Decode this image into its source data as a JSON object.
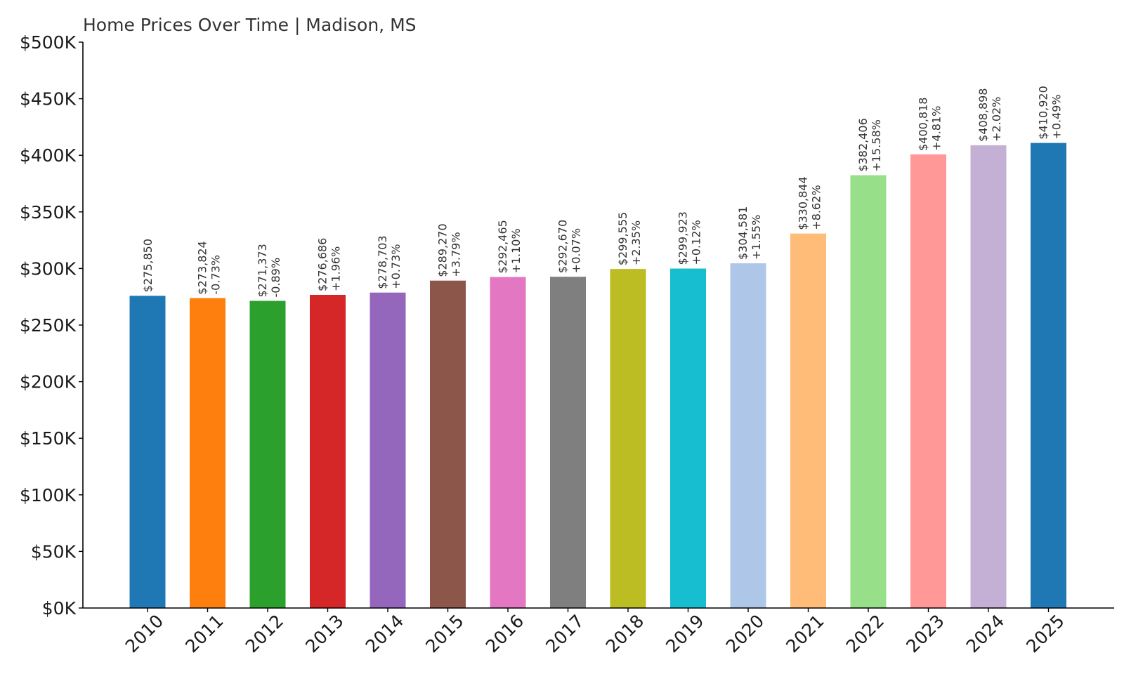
{
  "chart_data": {
    "type": "bar",
    "title": "Home Prices Over Time | Madison, MS",
    "xlabel": "",
    "ylabel": "",
    "ylim": [
      0,
      500000
    ],
    "y_ticks": [
      "$0K",
      "$50K",
      "$100K",
      "$150K",
      "$200K",
      "$250K",
      "$300K",
      "$350K",
      "$400K",
      "$450K",
      "$500K"
    ],
    "grid": false,
    "categories": [
      "2010",
      "2011",
      "2012",
      "2013",
      "2014",
      "2015",
      "2016",
      "2017",
      "2018",
      "2019",
      "2020",
      "2021",
      "2022",
      "2023",
      "2024",
      "2025"
    ],
    "values": [
      275850,
      273824,
      271373,
      276686,
      278703,
      289270,
      292465,
      292670,
      299555,
      299923,
      304581,
      330844,
      382406,
      400818,
      408898,
      410920
    ],
    "value_labels": [
      "$275,850",
      "$273,824",
      "$271,373",
      "$276,686",
      "$278,703",
      "$289,270",
      "$292,465",
      "$292,670",
      "$299,555",
      "$299,923",
      "$304,581",
      "$330,844",
      "$382,406",
      "$400,818",
      "$408,898",
      "$410,920"
    ],
    "change_labels": [
      "",
      "-0.73%",
      "-0.89%",
      "+1.96%",
      "+0.73%",
      "+3.79%",
      "+1.10%",
      "+0.07%",
      "+2.35%",
      "+0.12%",
      "+1.55%",
      "+8.62%",
      "+15.58%",
      "+4.81%",
      "+2.02%",
      "+0.49%"
    ],
    "colors": [
      "#1f77b4",
      "#ff7f0e",
      "#2ca02c",
      "#d62728",
      "#9467bd",
      "#8c564b",
      "#e377c2",
      "#7f7f7f",
      "#bcbd22",
      "#17becf",
      "#aec7e8",
      "#ffbb78",
      "#98df8a",
      "#ff9896",
      "#c5b0d5",
      "#1f77b4"
    ]
  }
}
